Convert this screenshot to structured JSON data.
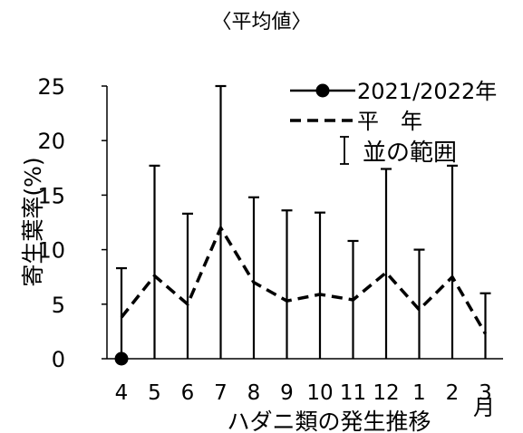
{
  "chart_data": {
    "type": "line",
    "title": "〈平均値〉",
    "xlabel": "ハダニ類の発生推移",
    "x_unit": "月",
    "ylabel": "寄生葉率(%)",
    "ylim": [
      0,
      25
    ],
    "yticks": [
      0,
      5,
      10,
      15,
      20,
      25
    ],
    "categories": [
      "4",
      "5",
      "6",
      "7",
      "8",
      "9",
      "10",
      "11",
      "12",
      "1",
      "2",
      "3"
    ],
    "series": [
      {
        "name": "2021/2022年",
        "style": "solid-marker",
        "color": "#000000",
        "values": [
          0,
          null,
          null,
          null,
          null,
          null,
          null,
          null,
          null,
          null,
          null,
          null
        ]
      },
      {
        "name": "平　年",
        "style": "dashed",
        "color": "#000000",
        "values": [
          3.8,
          7.6,
          5.0,
          12.0,
          7.0,
          5.3,
          5.9,
          5.4,
          7.9,
          4.5,
          7.5,
          2.3
        ]
      }
    ],
    "range": {
      "name": "並の範囲",
      "low": [
        0,
        0,
        0,
        0,
        0,
        0,
        0,
        0,
        0,
        0,
        0,
        0
      ],
      "high": [
        8.3,
        17.7,
        13.3,
        25.0,
        14.8,
        13.6,
        13.4,
        10.8,
        17.4,
        10.0,
        17.7,
        6.0
      ]
    },
    "legend": "top-right"
  }
}
